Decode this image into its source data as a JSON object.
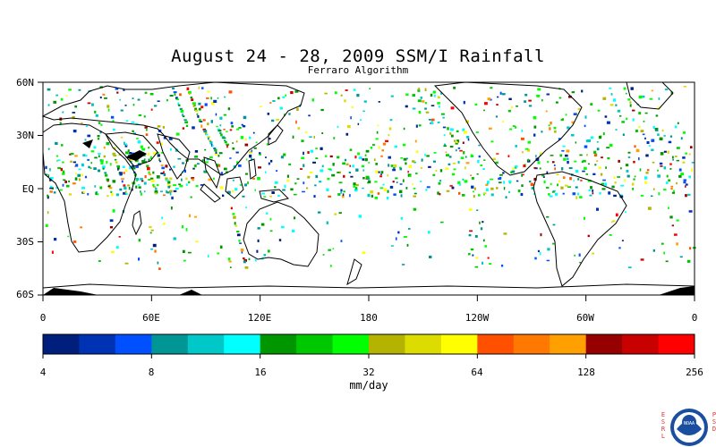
{
  "title": "August 24 - 28, 2009 SSM/I Rainfall",
  "subtitle": "Ferraro Algorithm",
  "map": {
    "lat_labels": [
      "60N",
      "30N",
      "EQ",
      "30S",
      "60S"
    ],
    "lon_labels": [
      "0",
      "60E",
      "120E",
      "180",
      "120W",
      "60W",
      "0"
    ]
  },
  "colorbar": {
    "units": "mm/day",
    "tick_labels": [
      "4",
      "8",
      "16",
      "32",
      "64",
      "128",
      "256"
    ],
    "colors": [
      "#001e7c",
      "#0032b4",
      "#0050ff",
      "#009696",
      "#00c8c8",
      "#00ffff",
      "#009600",
      "#00c800",
      "#00ff00",
      "#b4b400",
      "#dcdc00",
      "#ffff00",
      "#ff5000",
      "#ff7800",
      "#ffa000",
      "#960000",
      "#c80000",
      "#ff0000"
    ]
  },
  "logo": {
    "left_letters": [
      "E",
      "S",
      "R",
      "L"
    ],
    "right_letters": [
      "P",
      "S",
      "D"
    ],
    "badge_text": "NOAA"
  }
}
